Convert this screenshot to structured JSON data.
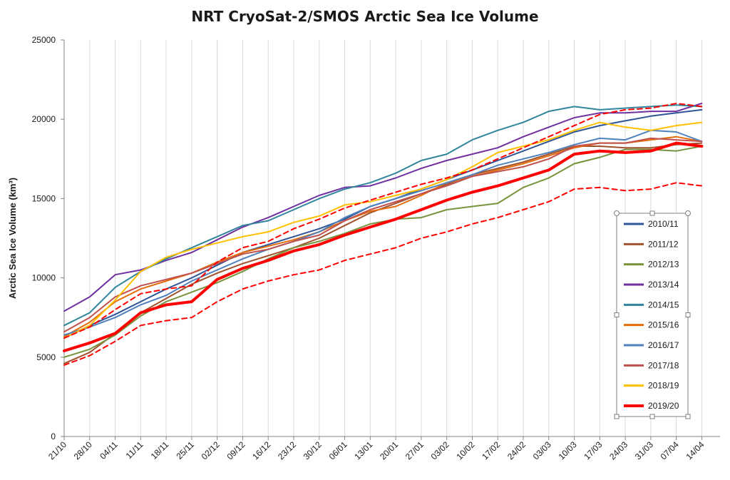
{
  "chart_data": {
    "type": "line",
    "title": "NRT CryoSat-2/SMOS Arctic Sea Ice Volume",
    "ylabel": "Arctic Sea Ice Volume (km³)",
    "xlabel": "",
    "ylim": [
      0,
      25000
    ],
    "yticks": [
      0,
      5000,
      10000,
      15000,
      20000,
      25000
    ],
    "xticks": [
      "21/10",
      "28/10",
      "04/11",
      "11/11",
      "18/11",
      "25/11",
      "02/12",
      "09/12",
      "16/12",
      "23/12",
      "30/12",
      "06/01",
      "13/01",
      "20/01",
      "27/01",
      "03/02",
      "10/02",
      "17/02",
      "24/02",
      "03/03",
      "10/03",
      "17/03",
      "24/03",
      "31/03",
      "07/04",
      "14/04"
    ],
    "x_unit": "day index from 21/10",
    "grid": "vertical only",
    "legend_position": "right",
    "series": [
      {
        "name": "2010/11",
        "color": "#2F5597",
        "width": 2,
        "dash": false,
        "x": [
          0,
          7,
          14,
          21,
          28,
          35,
          42,
          49,
          56,
          63,
          70,
          77,
          84,
          91,
          98,
          105,
          112,
          119,
          126,
          133,
          140,
          147,
          154,
          161,
          168,
          175
        ],
        "values": [
          6200,
          7000,
          7700,
          8500,
          9300,
          10000,
          10800,
          11600,
          12100,
          12600,
          13100,
          13700,
          14500,
          15000,
          15600,
          16200,
          16800,
          17400,
          18000,
          18600,
          19200,
          19600,
          19900,
          20200,
          20400,
          20600
        ]
      },
      {
        "name": "2011/12",
        "color": "#A0522D",
        "width": 2,
        "dash": false,
        "x": [
          0,
          7,
          14,
          21,
          28,
          35,
          42,
          49,
          56,
          63,
          70,
          77,
          84,
          91,
          98,
          105,
          112,
          119,
          126,
          133,
          140,
          147,
          154,
          161,
          168,
          175
        ],
        "values": [
          4600,
          5300,
          6500,
          7800,
          8700,
          9600,
          10300,
          10900,
          11400,
          11900,
          12500,
          13300,
          14100,
          14700,
          15300,
          15900,
          16500,
          16900,
          17300,
          17800,
          18300,
          18300,
          18200,
          18200,
          18400,
          18500
        ]
      },
      {
        "name": "2012/13",
        "color": "#77933C",
        "width": 2,
        "dash": false,
        "x": [
          0,
          7,
          14,
          21,
          28,
          35,
          42,
          49,
          56,
          63,
          70,
          77,
          84,
          91,
          98,
          105,
          112,
          119,
          126,
          133,
          140,
          147,
          154,
          161,
          168,
          175
        ],
        "values": [
          5000,
          5500,
          6400,
          7600,
          8500,
          9100,
          9700,
          10400,
          11200,
          11900,
          12300,
          12800,
          13400,
          13700,
          13800,
          14300,
          14500,
          14700,
          15700,
          16300,
          17200,
          17600,
          18100,
          18100,
          18000,
          18300
        ]
      },
      {
        "name": "2013/14",
        "color": "#7030A0",
        "width": 2,
        "dash": false,
        "x": [
          0,
          7,
          14,
          21,
          28,
          35,
          42,
          49,
          56,
          63,
          70,
          77,
          84,
          91,
          98,
          105,
          112,
          119,
          126,
          133,
          140,
          147,
          154,
          161,
          168,
          175
        ],
        "values": [
          7900,
          8800,
          10200,
          10500,
          11100,
          11600,
          12400,
          13200,
          13800,
          14500,
          15200,
          15700,
          15800,
          16300,
          16900,
          17400,
          17800,
          18200,
          18900,
          19500,
          20100,
          20400,
          20400,
          20500,
          20500,
          21000
        ]
      },
      {
        "name": "2014/15",
        "color": "#31859C",
        "width": 2,
        "dash": false,
        "x": [
          0,
          7,
          14,
          21,
          28,
          35,
          42,
          49,
          56,
          63,
          70,
          77,
          84,
          91,
          98,
          105,
          112,
          119,
          126,
          133,
          140,
          147,
          154,
          161,
          168,
          175
        ],
        "values": [
          7000,
          7800,
          9400,
          10400,
          11200,
          11900,
          12600,
          13300,
          13600,
          14300,
          15000,
          15600,
          16000,
          16600,
          17400,
          17800,
          18700,
          19300,
          19800,
          20500,
          20800,
          20600,
          20700,
          20800,
          20900,
          20800
        ]
      },
      {
        "name": "2015/16",
        "color": "#E46C0A",
        "width": 2,
        "dash": false,
        "x": [
          0,
          7,
          14,
          21,
          28,
          35,
          42,
          49,
          56,
          63,
          70,
          77,
          84,
          91,
          98,
          105,
          112,
          119,
          126,
          133,
          140,
          147,
          154,
          161,
          168,
          175
        ],
        "values": [
          6300,
          7200,
          8500,
          9300,
          9800,
          10300,
          11000,
          11600,
          12000,
          12400,
          12900,
          13600,
          14200,
          14500,
          15200,
          16000,
          16400,
          16800,
          17200,
          17700,
          18200,
          18500,
          18500,
          18700,
          18900,
          18600
        ]
      },
      {
        "name": "2016/17",
        "color": "#4F81BD",
        "width": 2,
        "dash": false,
        "x": [
          0,
          7,
          14,
          21,
          28,
          35,
          42,
          49,
          56,
          63,
          70,
          77,
          84,
          91,
          98,
          105,
          112,
          119,
          126,
          133,
          140,
          147,
          154,
          161,
          168,
          175
        ],
        "values": [
          6400,
          6900,
          7500,
          8300,
          8900,
          9800,
          10500,
          11200,
          11800,
          12300,
          12900,
          13800,
          14500,
          15000,
          15500,
          16000,
          16500,
          17100,
          17500,
          17900,
          18400,
          18800,
          18700,
          19300,
          19200,
          18600
        ]
      },
      {
        "name": "2017/18",
        "color": "#C0504D",
        "width": 2,
        "dash": false,
        "x": [
          0,
          7,
          14,
          21,
          28,
          35,
          42,
          49,
          56,
          63,
          70,
          77,
          84,
          91,
          98,
          105,
          112,
          119,
          126,
          133,
          140,
          147,
          154,
          161,
          168,
          175
        ],
        "values": [
          6600,
          7500,
          8800,
          9500,
          9900,
          10300,
          10900,
          11500,
          11800,
          12300,
          12700,
          13600,
          14300,
          14800,
          15300,
          15800,
          16400,
          16700,
          17000,
          17500,
          18300,
          18500,
          18500,
          18800,
          18700,
          18600
        ]
      },
      {
        "name": "2018/19",
        "color": "#FFC000",
        "width": 2,
        "dash": false,
        "x": [
          0,
          7,
          14,
          21,
          28,
          35,
          42,
          49,
          56,
          63,
          70,
          77,
          84,
          91,
          98,
          105,
          112,
          119,
          126,
          133,
          140,
          147,
          154,
          161,
          168,
          175
        ],
        "values": [
          6200,
          7000,
          8600,
          10400,
          11300,
          11800,
          12200,
          12600,
          12900,
          13500,
          13900,
          14600,
          14800,
          15200,
          15600,
          16200,
          17000,
          17900,
          18300,
          18700,
          19300,
          19800,
          19500,
          19300,
          19600,
          19800
        ]
      },
      {
        "name": "2019/20",
        "color": "#FF0000",
        "width": 4,
        "dash": false,
        "x": [
          0,
          7,
          14,
          21,
          28,
          35,
          42,
          49,
          56,
          63,
          70,
          77,
          84,
          91,
          98,
          105,
          112,
          119,
          126,
          133,
          140,
          147,
          154,
          161,
          168,
          175
        ],
        "values": [
          5400,
          5900,
          6500,
          7800,
          8300,
          8500,
          9900,
          10600,
          11100,
          11700,
          12100,
          12700,
          13200,
          13700,
          14300,
          14900,
          15400,
          15800,
          16300,
          16800,
          17800,
          18000,
          17900,
          18000,
          18500,
          18300
        ]
      },
      {
        "name": "",
        "color": "#FF0000",
        "width": 2,
        "dash": true,
        "x": [
          0,
          7,
          14,
          21,
          28,
          35,
          42,
          49,
          56,
          63,
          70,
          77,
          84,
          91,
          98,
          105,
          112,
          119,
          126,
          133,
          140,
          147,
          154,
          161,
          168,
          175
        ],
        "values": [
          6200,
          6900,
          8000,
          9000,
          9300,
          9500,
          11000,
          11900,
          12300,
          13100,
          13700,
          14400,
          14900,
          15400,
          15900,
          16300,
          16800,
          17500,
          18200,
          18900,
          19600,
          20300,
          20600,
          20700,
          21000,
          20800
        ]
      },
      {
        "name": "",
        "color": "#FF0000",
        "width": 2,
        "dash": true,
        "x": [
          0,
          7,
          14,
          21,
          28,
          35,
          42,
          49,
          56,
          63,
          70,
          77,
          84,
          91,
          98,
          105,
          112,
          119,
          126,
          133,
          140,
          147,
          154,
          161,
          168,
          175
        ],
        "values": [
          4500,
          5100,
          6000,
          7000,
          7300,
          7500,
          8500,
          9300,
          9800,
          10200,
          10500,
          11100,
          11500,
          11900,
          12500,
          12900,
          13400,
          13800,
          14300,
          14800,
          15600,
          15700,
          15500,
          15600,
          16000,
          15800
        ]
      }
    ]
  }
}
